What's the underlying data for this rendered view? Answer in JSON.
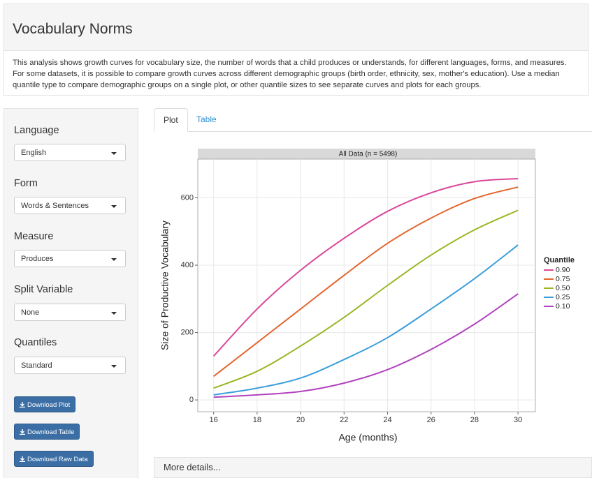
{
  "header": {
    "title": "Vocabulary Norms",
    "description": "This analysis shows growth curves for vocabulary size, the number of words that a child produces or understands, for different languages, forms, and measures. For some datasets, it is possible to compare growth curves across different demographic groups (birth order, ethnicity, sex, mother's education). Use a median quantile type to compare demographic groups on a single plot, or other quantile sizes to see separate curves and plots for each groups."
  },
  "sidebar": {
    "controls": [
      {
        "label": "Language",
        "value": "English"
      },
      {
        "label": "Form",
        "value": "Words & Sentences"
      },
      {
        "label": "Measure",
        "value": "Produces"
      },
      {
        "label": "Split Variable",
        "value": "None"
      },
      {
        "label": "Quantiles",
        "value": "Standard"
      }
    ],
    "buttons": [
      "Download Plot",
      "Download Table",
      "Download Raw Data"
    ]
  },
  "tabs": [
    "Plot",
    "Table"
  ],
  "chart_data": {
    "type": "line",
    "strip": "All Data (n = 5498)",
    "x_label": "Age (months)",
    "y_label": "Size of Productive Vocabulary",
    "x": [
      16,
      18,
      20,
      22,
      24,
      26,
      28,
      30
    ],
    "xlim": [
      15.4,
      30.8
    ],
    "ylim": [
      -35,
      715
    ],
    "xticks": [
      16,
      18,
      20,
      22,
      24,
      26,
      28,
      30
    ],
    "yticks": [
      0,
      200,
      400,
      600
    ],
    "grid": true,
    "legend_title": "Quantile",
    "series": [
      {
        "name": "0.90",
        "color": "#d9479b",
        "values": [
          130,
          270,
          385,
          480,
          560,
          615,
          648,
          657
        ]
      },
      {
        "name": "0.75",
        "color": "#e3652e",
        "values": [
          70,
          170,
          270,
          370,
          465,
          540,
          598,
          632
        ]
      },
      {
        "name": "0.50",
        "color": "#97b725",
        "values": [
          35,
          85,
          160,
          245,
          340,
          430,
          505,
          563
        ]
      },
      {
        "name": "0.25",
        "color": "#3b9edb",
        "values": [
          15,
          35,
          65,
          120,
          185,
          270,
          360,
          460
        ]
      },
      {
        "name": "0.10",
        "color": "#b142be",
        "values": [
          8,
          15,
          25,
          50,
          90,
          150,
          225,
          315
        ]
      }
    ]
  },
  "more_details": "More details..."
}
